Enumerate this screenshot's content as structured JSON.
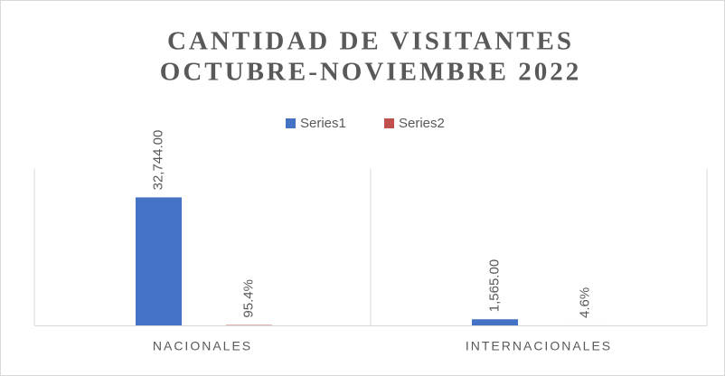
{
  "chart_data": {
    "type": "bar",
    "title": [
      "CANTIDAD DE VISITANTES",
      "OCTUBRE-NOVIEMBRE 2022"
    ],
    "categories": [
      "NACIONALES",
      "INTERNACIONALES"
    ],
    "series": [
      {
        "name": "Series1",
        "color": "#4472c4",
        "values": [
          32744,
          1565
        ],
        "value_labels": [
          "32,744.00",
          "1,565.00"
        ]
      },
      {
        "name": "Series2",
        "color": "#c0504d",
        "values": [
          95.4,
          4.6
        ],
        "value_labels": [
          "95.4%",
          "4.6%"
        ]
      }
    ],
    "ylim": [
      0,
      40000
    ]
  }
}
